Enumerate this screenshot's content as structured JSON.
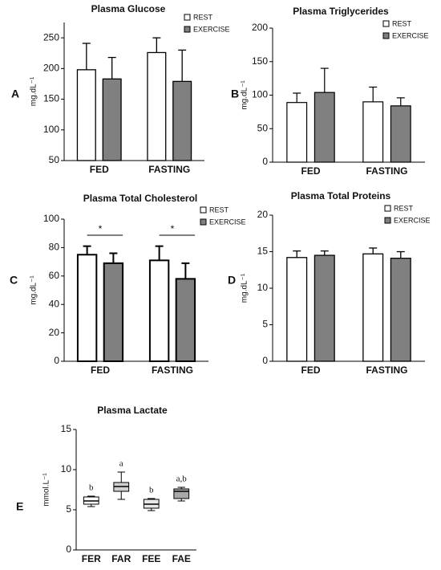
{
  "chart_data": [
    {
      "type": "bar",
      "label": "A",
      "title": "Plasma Glucose",
      "y_label": "mg.dL⁻¹",
      "categories": [
        "FED",
        "FASTING"
      ],
      "series": [
        {
          "name": "REST",
          "color": "#ffffff",
          "values": [
            198,
            226
          ],
          "errors": [
            43,
            24
          ]
        },
        {
          "name": "EXERCISE",
          "color": "#808080",
          "values": [
            183,
            179
          ],
          "errors": [
            35,
            51
          ]
        }
      ],
      "ylim": [
        50,
        275
      ],
      "yticks": [
        50,
        100,
        150,
        200,
        250
      ]
    },
    {
      "type": "bar",
      "label": "B",
      "title": "Plasma Triglycerides",
      "y_label": "mg.dL⁻¹",
      "categories": [
        "FED",
        "FASTING"
      ],
      "series": [
        {
          "name": "REST",
          "color": "#ffffff",
          "values": [
            89,
            90
          ],
          "errors": [
            14,
            22
          ]
        },
        {
          "name": "EXERCISE",
          "color": "#808080",
          "values": [
            104,
            84
          ],
          "errors": [
            36,
            12
          ]
        }
      ],
      "ylim": [
        0,
        200
      ],
      "yticks": [
        0,
        50,
        100,
        150,
        200
      ]
    },
    {
      "type": "bar",
      "label": "C",
      "title": "Plasma Total Cholesterol",
      "y_label": "mg.dL⁻¹",
      "categories": [
        "FED",
        "FASTING"
      ],
      "series": [
        {
          "name": "REST",
          "color": "#ffffff",
          "values": [
            75,
            71
          ],
          "errors": [
            6,
            10
          ]
        },
        {
          "name": "EXERCISE",
          "color": "#808080",
          "values": [
            69,
            58
          ],
          "errors": [
            7,
            11
          ]
        }
      ],
      "significance": [
        "*",
        "*"
      ],
      "ylim": [
        0,
        100
      ],
      "yticks": [
        0,
        20,
        40,
        60,
        80,
        100
      ]
    },
    {
      "type": "bar",
      "label": "D",
      "title": "Plasma Total Proteins",
      "y_label": "mg.dL⁻¹",
      "categories": [
        "FED",
        "FASTING"
      ],
      "series": [
        {
          "name": "REST",
          "color": "#ffffff",
          "values": [
            14.2,
            14.7
          ],
          "errors": [
            0.9,
            0.8
          ]
        },
        {
          "name": "EXERCISE",
          "color": "#808080",
          "values": [
            14.5,
            14.1
          ],
          "errors": [
            0.6,
            0.9
          ]
        }
      ],
      "ylim": [
        0,
        20
      ],
      "yticks": [
        0,
        5,
        10,
        15,
        20
      ]
    },
    {
      "type": "box",
      "label": "E",
      "title": "Plasma Lactate",
      "y_label": "mmol.L⁻¹",
      "categories": [
        "FER",
        "FAR",
        "FEE",
        "FAE"
      ],
      "boxes": [
        {
          "min": 5.4,
          "q1": 5.7,
          "median": 6.1,
          "q3": 6.6,
          "max": 6.7
        },
        {
          "min": 6.3,
          "q1": 7.3,
          "median": 7.9,
          "q3": 8.4,
          "max": 9.7
        },
        {
          "min": 4.9,
          "q1": 5.2,
          "median": 5.7,
          "q3": 6.3,
          "max": 6.4
        },
        {
          "min": 6.1,
          "q1": 6.4,
          "median": 7.3,
          "q3": 7.6,
          "max": 7.8
        }
      ],
      "colors": [
        "#ffffff",
        "#d0d0d0",
        "#e8e8e8",
        "#a8a8a8"
      ],
      "group_labels": [
        "b",
        "a",
        "b",
        "a,b"
      ],
      "ylim": [
        0,
        15
      ],
      "yticks": [
        0,
        5,
        10,
        15
      ]
    }
  ]
}
